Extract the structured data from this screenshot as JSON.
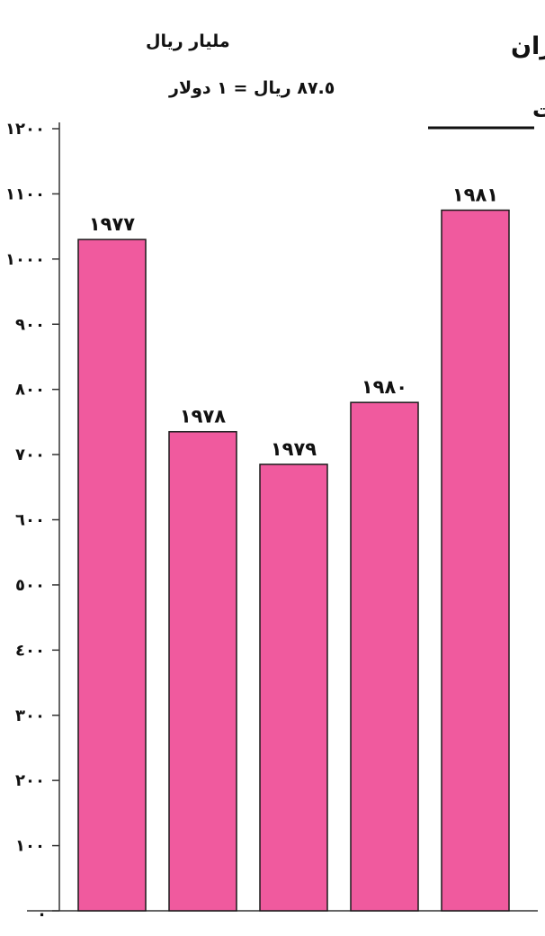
{
  "chart_data": {
    "type": "bar",
    "title": "قيمة استيرادات إيران",
    "unit": "مليار ريال",
    "note": "٨٧.٥ ريال = ١ دولار",
    "xlabel": "السـنوات",
    "categories": [
      "١٩٧٧",
      "١٩٧٨",
      "١٩٧٩",
      "١٩٨٠",
      "١٩٨١"
    ],
    "values": [
      1030,
      735,
      685,
      780,
      1075
    ],
    "ylim": [
      0,
      1200
    ],
    "yticks": [
      0,
      100,
      200,
      300,
      400,
      500,
      600,
      700,
      800,
      900,
      1000,
      1100,
      1200
    ],
    "ytick_labels": [
      ".",
      "١٠٠",
      "٢٠٠",
      "٣٠٠",
      "٤٠٠",
      "٥٠٠",
      "٦٠٠",
      "٧٠٠",
      "٨٠٠",
      "٩٠٠",
      "١٠٠٠",
      "١١٠٠",
      "١٢٠٠"
    ],
    "grid": false,
    "legend": "none",
    "bar_color": "#f05a9e"
  }
}
